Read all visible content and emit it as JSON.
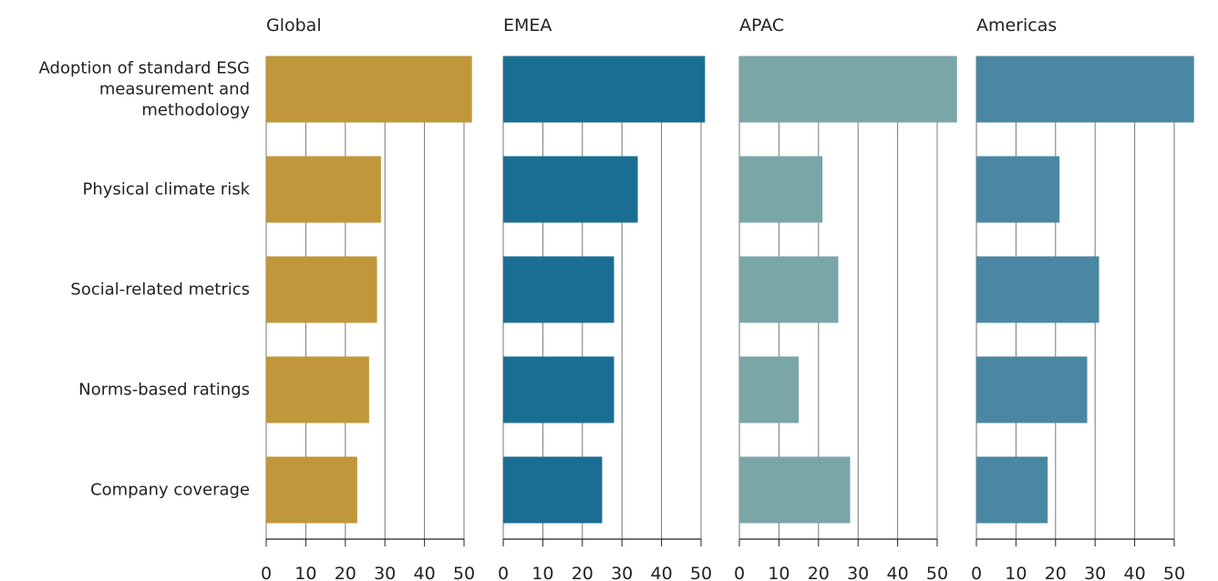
{
  "chart_data": {
    "type": "bar",
    "orientation": "horizontal",
    "categories": [
      "Adoption of standard ESG measurement and methodology",
      "Physical climate risk",
      "Social-related metrics",
      "Norms-based ratings",
      "Company coverage"
    ],
    "series": [
      {
        "name": "Global",
        "color": "#c0973a",
        "values": [
          52,
          29,
          28,
          26,
          23
        ]
      },
      {
        "name": "EMEA",
        "color": "#1b6e93",
        "values": [
          51,
          34,
          28,
          28,
          25
        ]
      },
      {
        "name": "APAC",
        "color": "#7aa6a8",
        "values": [
          55,
          21,
          25,
          15,
          28
        ]
      },
      {
        "name": "Americas",
        "color": "#4a87a3",
        "values": [
          55,
          21,
          31,
          28,
          18
        ]
      }
    ],
    "xlim": [
      0,
      55
    ],
    "xticks": [
      0,
      10,
      20,
      30,
      40,
      50
    ],
    "grid": true
  }
}
